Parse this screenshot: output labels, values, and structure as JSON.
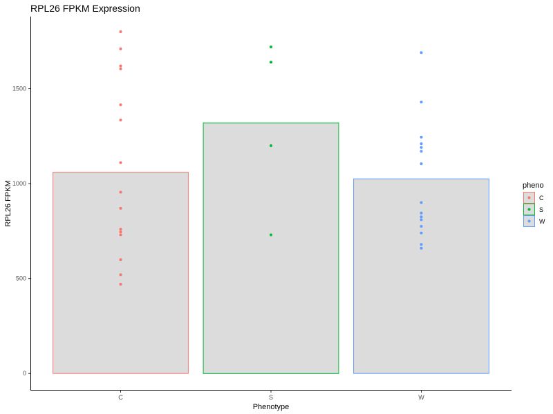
{
  "chart_data": {
    "type": "bar",
    "title": "RPL26 FPKM Expression",
    "xlabel": "Phenotype",
    "ylabel": "RPL26 FPKM",
    "categories": [
      "C",
      "S",
      "W"
    ],
    "values": [
      1060,
      1320,
      1025
    ],
    "points": [
      [
        1800,
        1710,
        1620,
        1605,
        1415,
        1335,
        1110,
        955,
        870,
        760,
        745,
        730,
        600,
        520,
        470
      ],
      [
        1720,
        1640,
        1200,
        730
      ],
      [
        1690,
        1430,
        1245,
        1210,
        1190,
        1170,
        1105,
        900,
        845,
        825,
        810,
        775,
        740,
        680,
        660
      ]
    ],
    "colors": [
      "#f8766d",
      "#00ba38",
      "#619cff"
    ],
    "bar_fill": "#dcdcdc",
    "ylim": [
      -90,
      1880
    ],
    "yticks": [
      0,
      500,
      1000,
      1500
    ],
    "grid": false,
    "legend": {
      "title": "pheno",
      "entries": [
        "C",
        "S",
        "W"
      ],
      "placement": "right"
    }
  }
}
